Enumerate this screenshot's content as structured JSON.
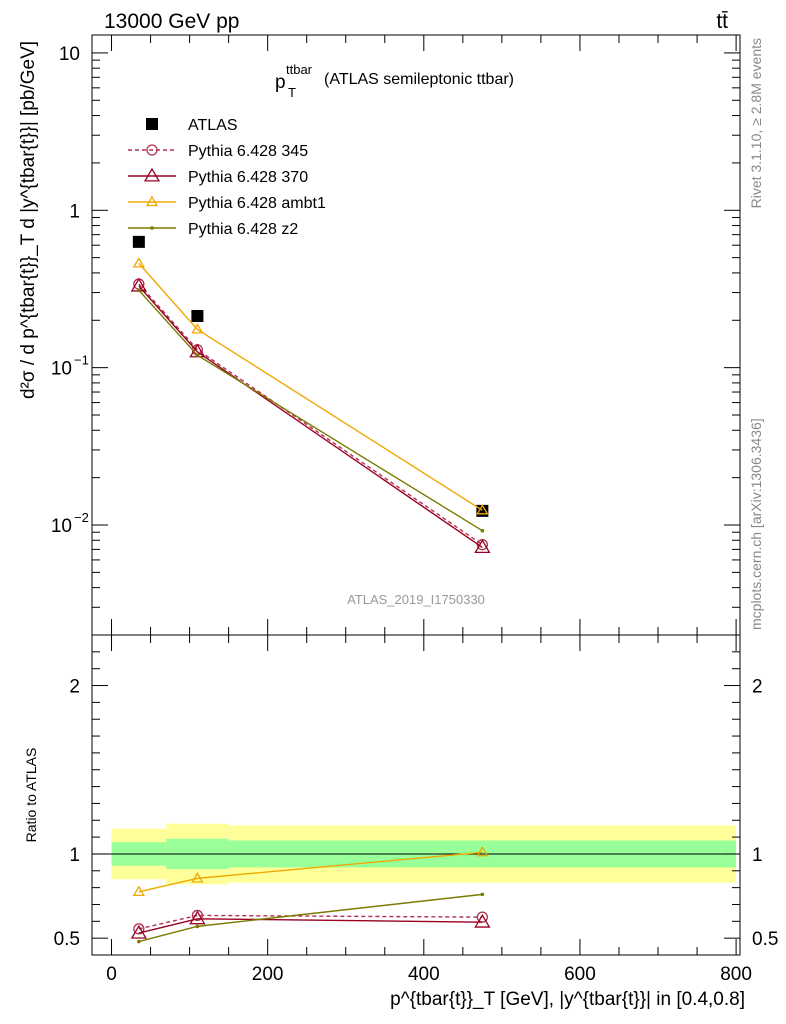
{
  "header": {
    "left": "13000 GeV pp",
    "right": "tt̄"
  },
  "plot_title": {
    "main": "p",
    "sup": "ttbar",
    "sub": "T",
    "rest": "(ATLAS semileptonic ttbar)"
  },
  "y_axis_label": "d²σ / d p^{tbar{t}}_T d |y^{tbar{t}}| [pb/GeV]",
  "ratio_ylabel": "Ratio to ATLAS",
  "x_axis_label": "p^{tbar{t}}_T [GeV], |y^{tbar{t}}| in [0.4,0.8]",
  "side_text_top": "Rivet 3.1.10, ≥ 2.8M events",
  "side_text_bottom": "mcplots.cern.ch [arXiv:1306.3436]",
  "watermark": "ATLAS_2019_I1750330",
  "colors": {
    "data": "#000000",
    "p345": "#b03050",
    "p370": "#990022",
    "ambt1": "#f0a800",
    "z2": "#7a7a00",
    "band_inner": "#99ff99",
    "band_outer": "#ffff99"
  },
  "chart_data": [
    {
      "type": "line",
      "yscale": "log",
      "xlim": [
        -25,
        805
      ],
      "ylim": [
        0.002,
        13
      ],
      "x_ticks": [
        "0",
        "200",
        "400",
        "600",
        "800"
      ],
      "y_ticks": [
        "10^-2",
        "10^-1",
        "1",
        "10"
      ],
      "legend": {
        "placement": "top-left"
      },
      "x": [
        35,
        110,
        475
      ],
      "bin_edges": [
        0,
        70,
        150,
        800
      ],
      "series": [
        {
          "name": "ATLAS",
          "style": "data",
          "y": [
            0.63,
            0.213,
            0.0123
          ]
        },
        {
          "name": "Pythia 6.428 345",
          "style": "p345",
          "y": [
            0.34,
            0.13,
            0.0075
          ]
        },
        {
          "name": "Pythia 6.428 370",
          "style": "p370",
          "y": [
            0.33,
            0.126,
            0.0072
          ]
        },
        {
          "name": "Pythia 6.428 ambt1",
          "style": "ambt1",
          "y": [
            0.46,
            0.175,
            0.0124
          ]
        },
        {
          "name": "Pythia 6.428 z2",
          "style": "z2",
          "y": [
            0.31,
            0.12,
            0.0092
          ]
        }
      ]
    },
    {
      "type": "line",
      "yscale": "linear",
      "xlim": [
        -25,
        805
      ],
      "ylim": [
        0.4,
        2.3
      ],
      "y_ticks": [
        "0.5",
        "1",
        "2"
      ],
      "x": [
        35,
        110,
        475
      ],
      "bands": [
        {
          "x0": 0,
          "x1": 70,
          "inner": [
            0.93,
            1.07
          ],
          "outer": [
            0.85,
            1.15
          ]
        },
        {
          "x0": 70,
          "x1": 150,
          "inner": [
            0.91,
            1.09
          ],
          "outer": [
            0.82,
            1.18
          ]
        },
        {
          "x0": 150,
          "x1": 800,
          "inner": [
            0.92,
            1.08
          ],
          "outer": [
            0.83,
            1.17
          ]
        }
      ],
      "series": [
        {
          "name": "Pythia 6.428 345",
          "style": "p345",
          "y": [
            0.555,
            0.635,
            0.625
          ]
        },
        {
          "name": "Pythia 6.428 370",
          "style": "p370",
          "y": [
            0.53,
            0.615,
            0.595
          ]
        },
        {
          "name": "Pythia 6.428 ambt1",
          "style": "ambt1",
          "y": [
            0.775,
            0.855,
            1.01
          ]
        },
        {
          "name": "Pythia 6.428 z2",
          "style": "z2",
          "y": [
            0.48,
            0.57,
            0.76
          ]
        }
      ]
    }
  ]
}
